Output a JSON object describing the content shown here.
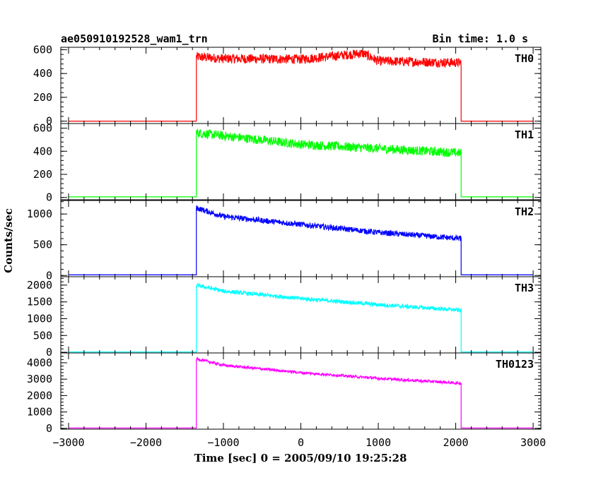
{
  "chart_data": {
    "type": "line",
    "title": "ae050910192528_wam1_trn",
    "subtitle": "Bin time: 1.0 s",
    "xlabel": "Time [sec] 0 = 2005/09/10 19:25:28",
    "ylabel": "Counts/sec",
    "xlim": [
      -3100,
      3100
    ],
    "x_ticks": [
      "−3000",
      "−2000",
      "−1000",
      "0",
      "1000",
      "2000",
      "3000"
    ],
    "x_tick_values": [
      -3000,
      -2000,
      -1000,
      0,
      1000,
      2000,
      3000
    ],
    "panels": [
      {
        "name": "TH0",
        "color": "#ff0000",
        "ylim": [
          -20,
          620
        ],
        "y_ticks": [
          "0",
          "200",
          "400",
          "600"
        ],
        "y_tick_values": [
          0,
          200,
          400,
          600
        ],
        "trend": {
          "x": [
            -1350,
            -1000,
            0,
            800,
            1000,
            2070
          ],
          "y": [
            540,
            525,
            520,
            570,
            505,
            490
          ]
        },
        "noise": 40,
        "baseline": 0,
        "onset": -1350,
        "end": 2070
      },
      {
        "name": "TH1",
        "color": "#00ff00",
        "ylim": [
          -20,
          640
        ],
        "y_ticks": [
          "0",
          "200",
          "400",
          "600"
        ],
        "y_tick_values": [
          0,
          200,
          400,
          600
        ],
        "trend": {
          "x": [
            -1350,
            0,
            2070
          ],
          "y": [
            560,
            460,
            385
          ]
        },
        "noise": 40,
        "baseline": 5,
        "onset": -1350,
        "end": 2070
      },
      {
        "name": "TH2",
        "color": "#0000ff",
        "ylim": [
          -20,
          1220
        ],
        "y_ticks": [
          "0",
          "500",
          "1000"
        ],
        "y_tick_values": [
          0,
          500,
          1000
        ],
        "trend": {
          "x": [
            -1350,
            -1000,
            0,
            1000,
            2070
          ],
          "y": [
            1100,
            960,
            830,
            700,
            600
          ]
        },
        "noise": 45,
        "baseline": 10,
        "onset": -1350,
        "end": 2070
      },
      {
        "name": "TH3",
        "color": "#00ffff",
        "ylim": [
          -20,
          2250
        ],
        "y_ticks": [
          "0",
          "500",
          "1000",
          "1500",
          "2000"
        ],
        "y_tick_values": [
          0,
          500,
          1000,
          1500,
          2000
        ],
        "trend": {
          "x": [
            -1350,
            -1000,
            0,
            1000,
            2070
          ],
          "y": [
            2000,
            1820,
            1600,
            1420,
            1250
          ]
        },
        "noise": 60,
        "baseline": 10,
        "onset": -1350,
        "end": 2070
      },
      {
        "name": "TH0123",
        "color": "#ff00ff",
        "ylim": [
          -50,
          4600
        ],
        "y_ticks": [
          "0",
          "1000",
          "2000",
          "3000",
          "4000"
        ],
        "y_tick_values": [
          0,
          1000,
          2000,
          3000,
          4000
        ],
        "trend": {
          "x": [
            -1350,
            -1000,
            0,
            1000,
            2070
          ],
          "y": [
            4250,
            3850,
            3400,
            3050,
            2750
          ]
        },
        "noise": 80,
        "baseline": 20,
        "onset": -1350,
        "end": 2070
      }
    ],
    "grid": false,
    "legend": "none"
  }
}
